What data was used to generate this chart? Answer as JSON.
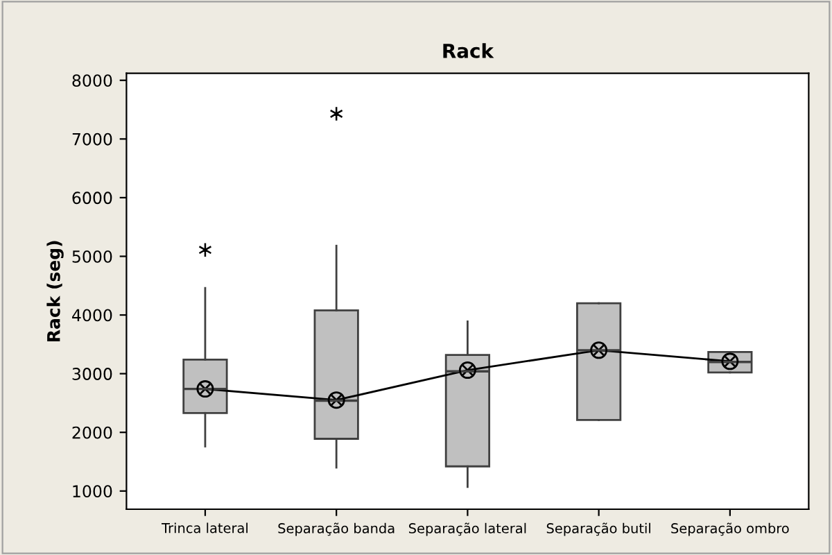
{
  "chart_data": {
    "type": "box",
    "title": "Rack",
    "ylabel": "Rack (seg)",
    "categories": [
      "Trinca lateral",
      "Separação banda",
      "Separação lateral",
      "Separação butil",
      "Separação ombro"
    ],
    "boxes": [
      {
        "low": 1760,
        "q1": 2330,
        "median": 2740,
        "q3": 3240,
        "high": 4460,
        "mean": 2740,
        "outliers": [
          5110
        ]
      },
      {
        "low": 1400,
        "q1": 1890,
        "median": 2540,
        "q3": 4080,
        "high": 5180,
        "mean": 2550,
        "outliers": [
          7430
        ]
      },
      {
        "low": 1070,
        "q1": 1420,
        "median": 3040,
        "q3": 3320,
        "high": 3890,
        "mean": 3060
      },
      {
        "low": 2210,
        "q1": 2210,
        "median": 3400,
        "q3": 4200,
        "high": 4200,
        "mean": 3400
      },
      {
        "low": 3020,
        "q1": 3020,
        "median": 3200,
        "q3": 3370,
        "high": 3370,
        "mean": 3210
      }
    ],
    "series": [
      {
        "type": "line",
        "color": "#000000",
        "values": [
          2740,
          2550,
          3060,
          3400,
          3210
        ]
      }
    ],
    "color": "#c0c0c0",
    "ylim": [
      690,
      8120
    ],
    "yticks": [
      1000,
      2000,
      3000,
      4000,
      5000,
      6000,
      7000,
      8000
    ],
    "grid": false,
    "legend": false,
    "marker": "none"
  }
}
